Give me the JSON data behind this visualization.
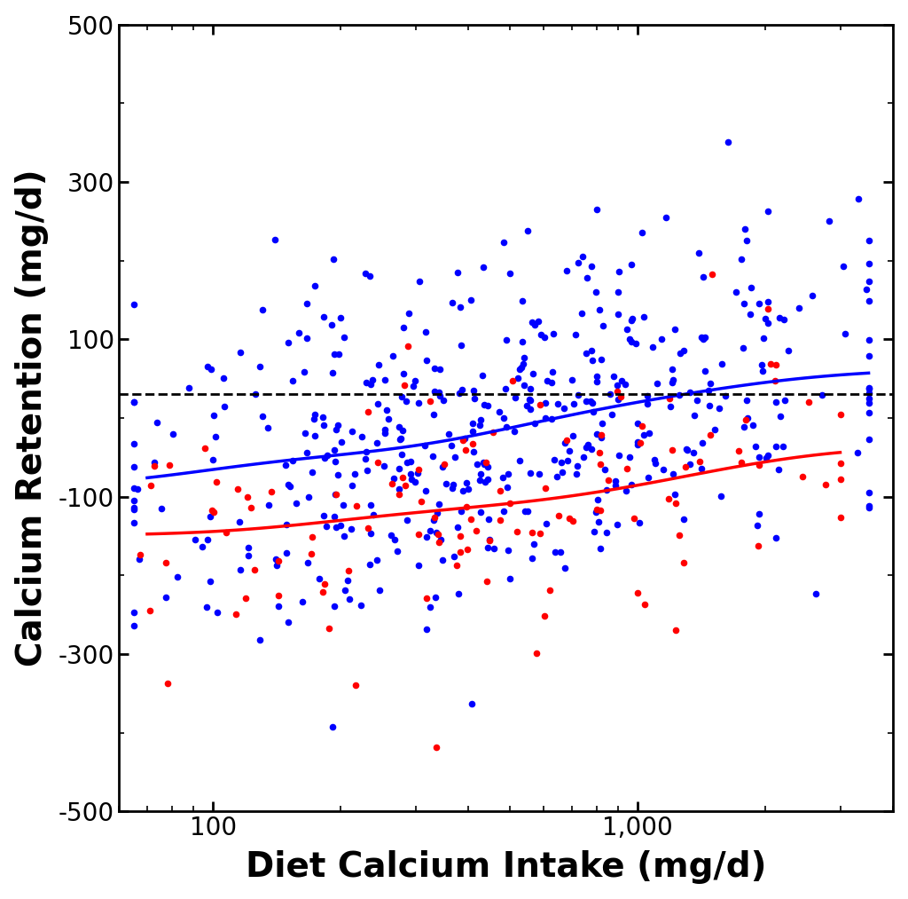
{
  "title": "",
  "xlabel": "Diet Calcium Intake (mg/d)",
  "ylabel": "Calcium Retention (mg/d)",
  "xlim_log": [
    60,
    4000
  ],
  "ylim": [
    -500,
    500
  ],
  "dashed_line_y": 30,
  "blue_color": "#0000FF",
  "red_color": "#FF0000",
  "background_color": "#FFFFFF",
  "seed": 12345,
  "n_blue": 480,
  "n_red": 120
}
